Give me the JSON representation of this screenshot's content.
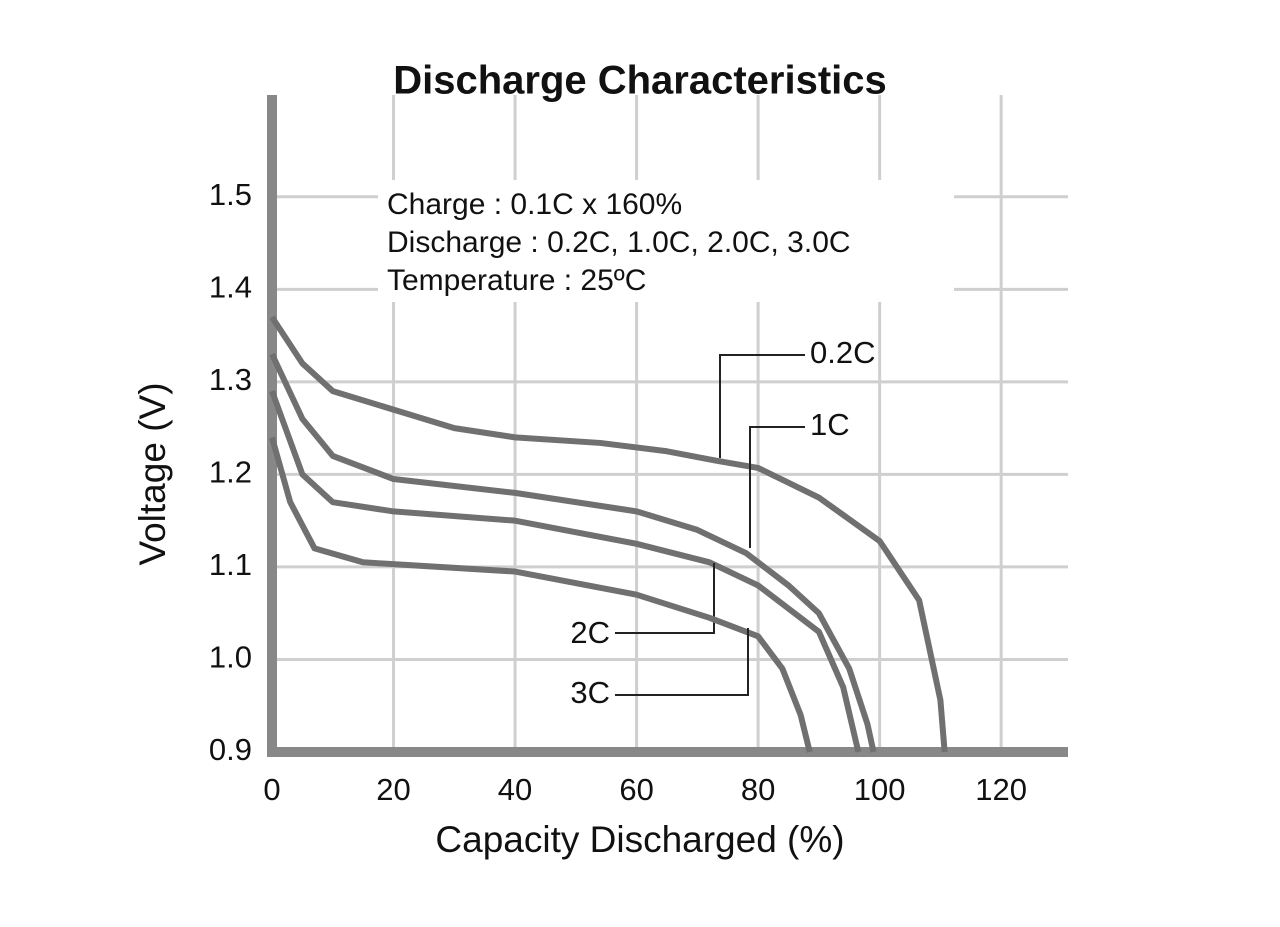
{
  "chart_data": {
    "type": "line",
    "title": "Discharge Characteristics",
    "x_label": "Capacity Discharged (%)",
    "y_label": "Voltage (V)",
    "annotations": [
      "Charge : 0.1C x 160%",
      "Discharge : 0.2C, 1.0C, 2.0C, 3.0C",
      "Temperature : 25ºC"
    ],
    "xlim": [
      0,
      131
    ],
    "ylim": [
      0.9,
      1.61
    ],
    "xticks": [
      0,
      20,
      40,
      60,
      80,
      100,
      120
    ],
    "yticks": [
      {
        "value": 0.9,
        "label": "0.9"
      },
      {
        "value": 1.0,
        "label": "1.0"
      },
      1.1,
      1.2,
      1.3,
      1.4,
      1.5
    ],
    "grid": true,
    "series": [
      {
        "name": "0.2C",
        "color": "#707070",
        "x": [
          0,
          5,
          10,
          21,
          30,
          40,
          54,
          65,
          73,
          80,
          90,
          100,
          106.5,
          110,
          110.7
        ],
        "values": [
          1.37,
          1.32,
          1.29,
          1.268,
          1.25,
          1.24,
          1.234,
          1.225,
          1.215,
          1.207,
          1.175,
          1.128,
          1.064,
          0.956,
          0.9
        ]
      },
      {
        "name": "1C",
        "color": "#707070",
        "x": [
          0,
          5,
          10,
          20,
          40,
          60,
          70,
          78,
          85,
          90,
          95,
          98,
          99
        ],
        "values": [
          1.33,
          1.26,
          1.22,
          1.195,
          1.18,
          1.16,
          1.14,
          1.115,
          1.08,
          1.05,
          0.99,
          0.93,
          0.9
        ]
      },
      {
        "name": "2C",
        "color": "#707070",
        "x": [
          0,
          5,
          10,
          20,
          40,
          60,
          72,
          80,
          90,
          94,
          96.5
        ],
        "values": [
          1.29,
          1.2,
          1.17,
          1.16,
          1.15,
          1.125,
          1.105,
          1.08,
          1.03,
          0.97,
          0.9
        ]
      },
      {
        "name": "3C",
        "color": "#707070",
        "x": [
          0,
          3,
          7,
          15,
          40,
          60,
          72,
          80,
          84,
          87,
          88.5
        ],
        "values": [
          1.24,
          1.17,
          1.12,
          1.105,
          1.095,
          1.07,
          1.045,
          1.025,
          0.99,
          0.94,
          0.9
        ]
      }
    ]
  }
}
